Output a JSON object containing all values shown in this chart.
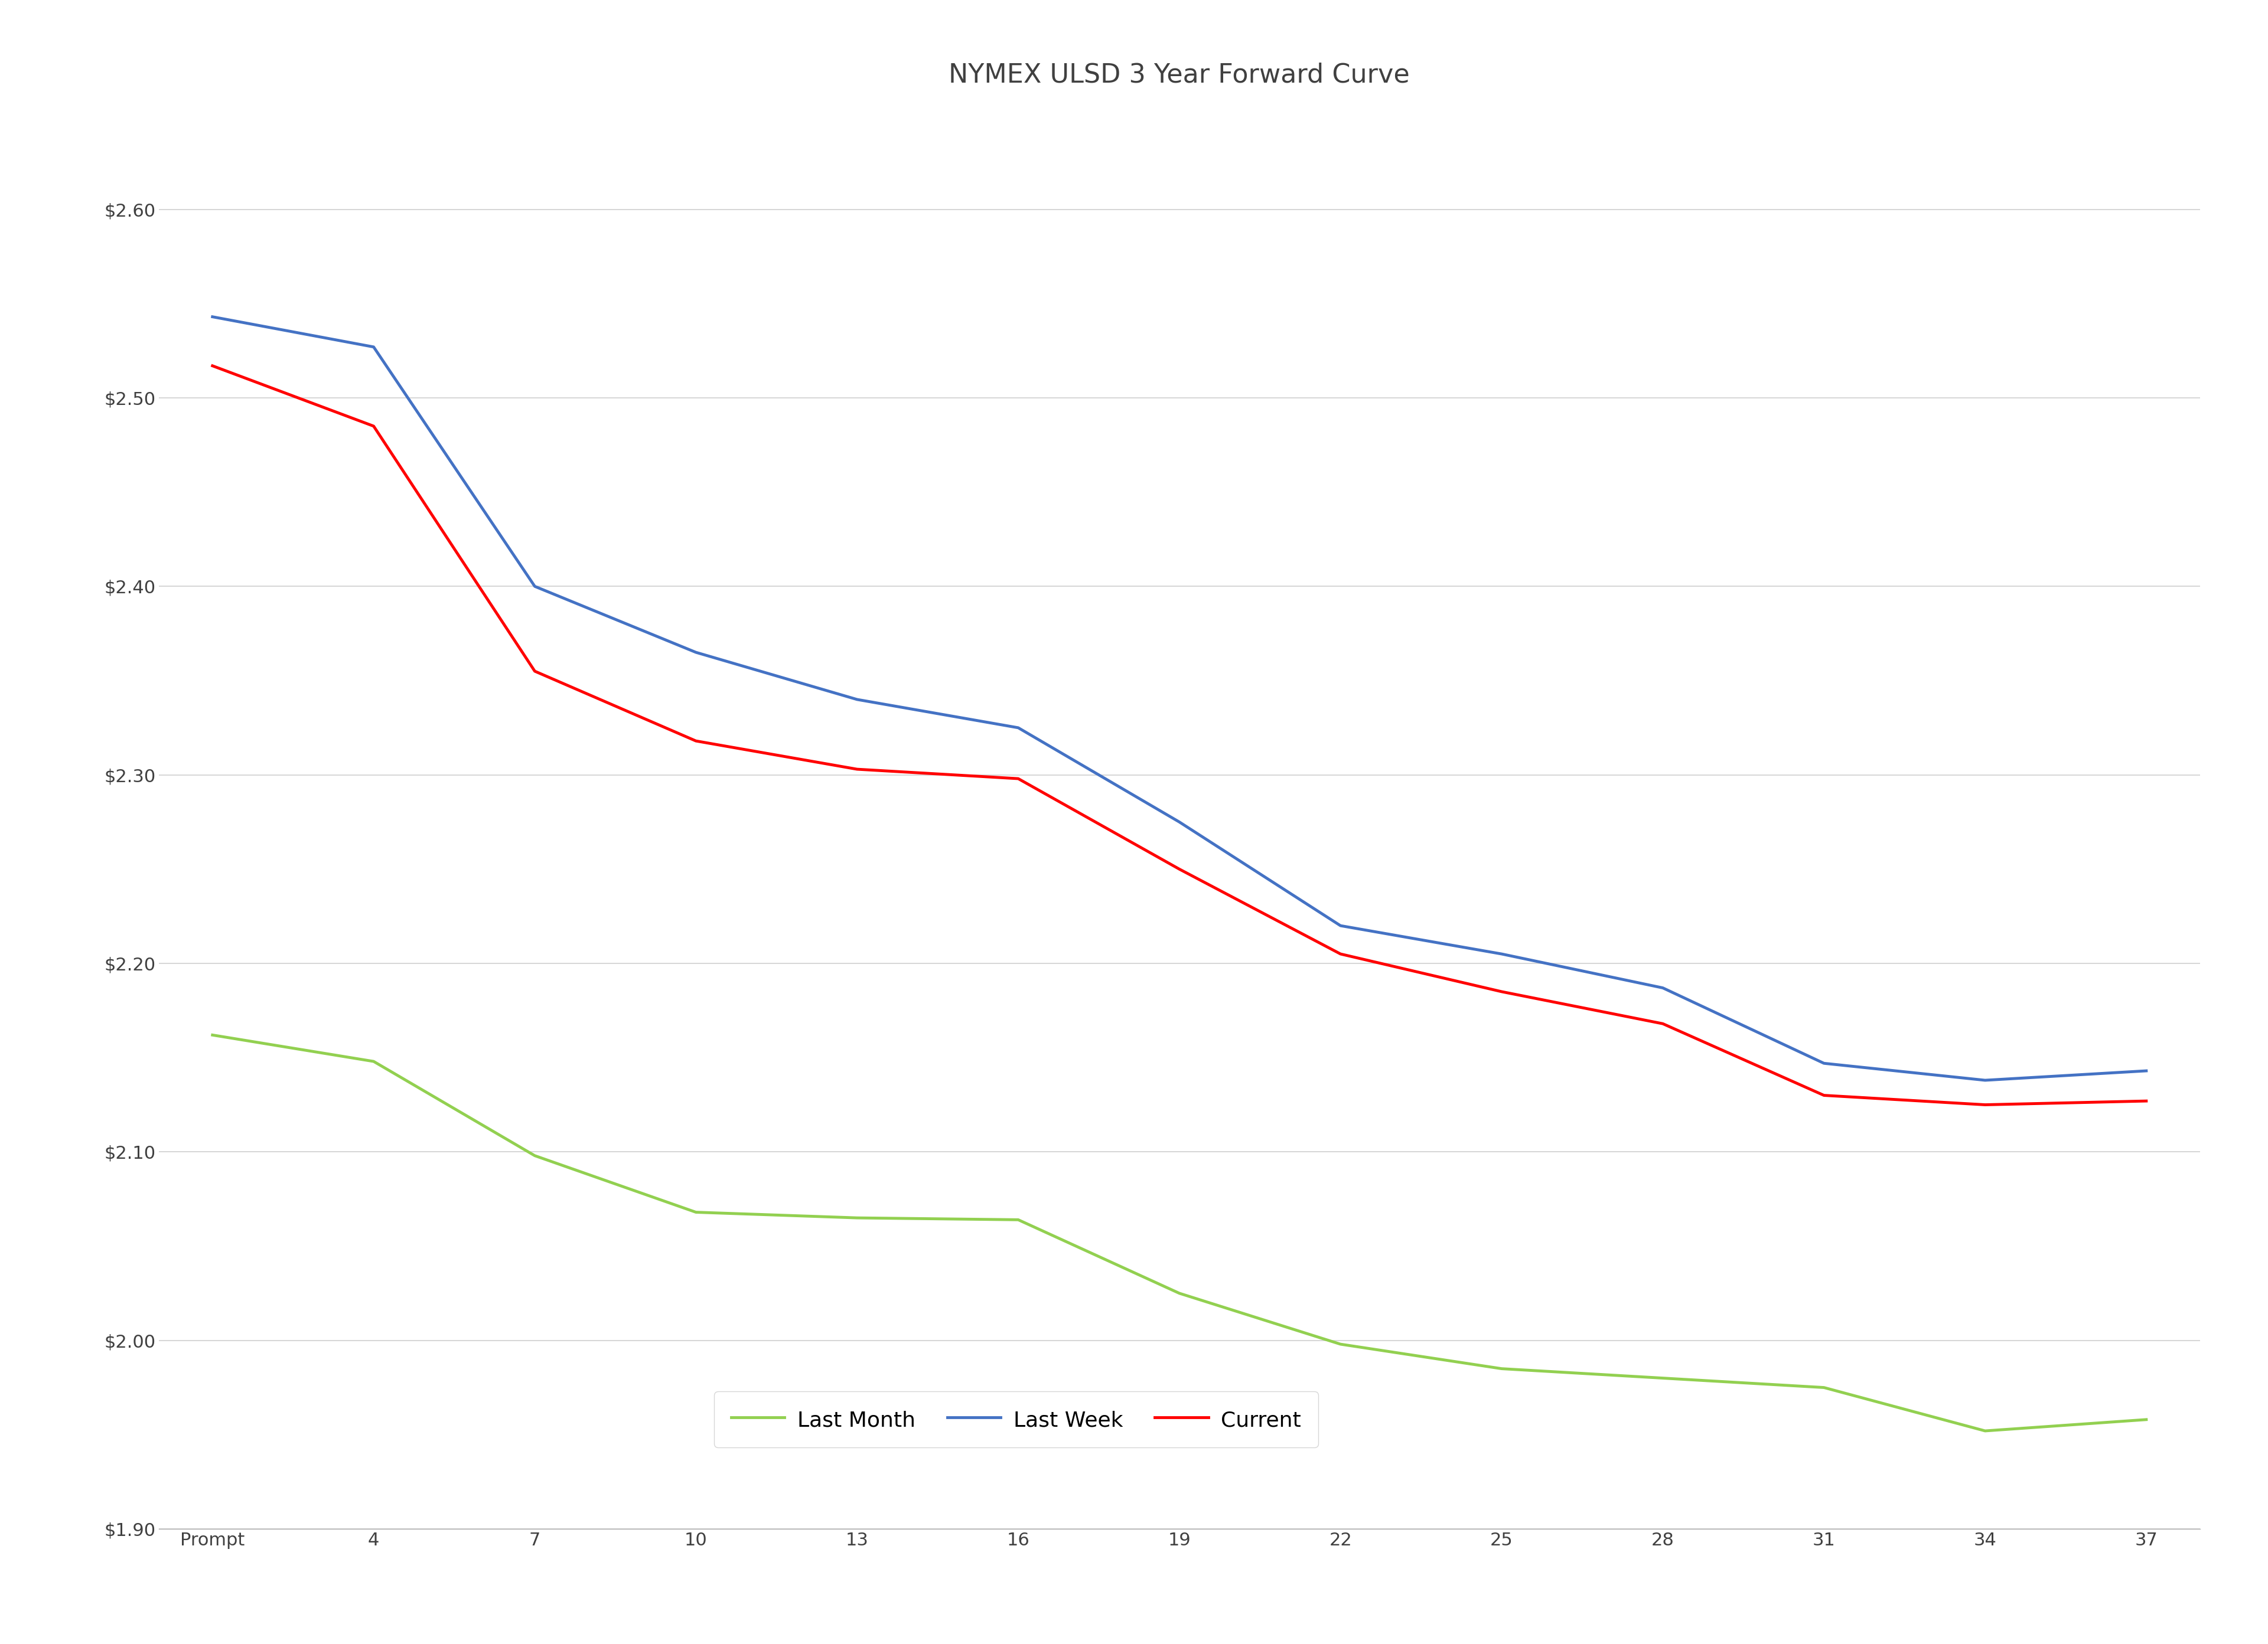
{
  "title": "NYMEX ULSD 3 Year Forward Curve",
  "x_labels": [
    "Prompt",
    "4",
    "7",
    "10",
    "13",
    "16",
    "19",
    "22",
    "25",
    "28",
    "31",
    "34",
    "37"
  ],
  "x_values": [
    0,
    3,
    6,
    9,
    12,
    15,
    18,
    21,
    24,
    27,
    30,
    33,
    36
  ],
  "last_month": [
    2.162,
    2.148,
    2.098,
    2.068,
    2.065,
    2.064,
    2.025,
    1.998,
    1.985,
    1.98,
    1.975,
    1.952,
    1.958
  ],
  "last_week": [
    2.543,
    2.527,
    2.4,
    2.365,
    2.34,
    2.325,
    2.275,
    2.22,
    2.205,
    2.187,
    2.147,
    2.138,
    2.143
  ],
  "current": [
    2.517,
    2.485,
    2.355,
    2.318,
    2.303,
    2.298,
    2.25,
    2.205,
    2.185,
    2.168,
    2.13,
    2.125,
    2.127
  ],
  "line_colors": {
    "last_month": "#92d050",
    "last_week": "#4472c4",
    "current": "#ff0000"
  },
  "line_width": 3.5,
  "ylim": [
    1.9,
    2.65
  ],
  "yticks": [
    1.9,
    2.0,
    2.1,
    2.2,
    2.3,
    2.4,
    2.5,
    2.6
  ],
  "legend_labels": [
    "Last Month",
    "Last Week",
    "Current"
  ],
  "background_color": "#ffffff",
  "plot_background": "#ffffff",
  "grid_color": "#d0d0d0",
  "title_fontsize": 32,
  "tick_fontsize": 22,
  "legend_fontsize": 26
}
